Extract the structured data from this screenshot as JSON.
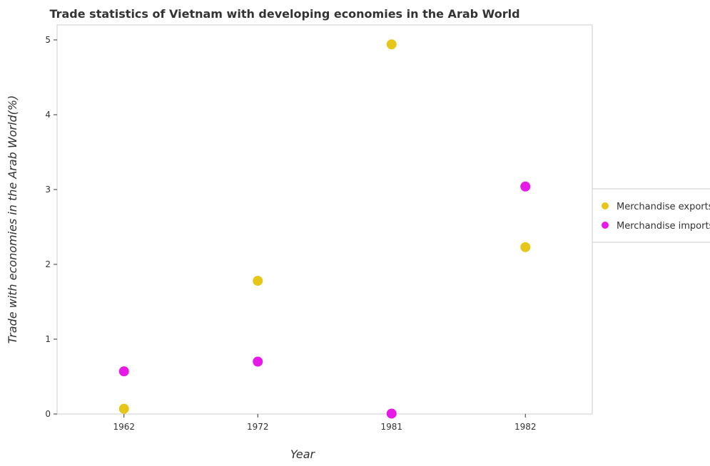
{
  "chart_data": {
    "type": "scatter",
    "title": "Trade statistics of Vietnam with developing economies in the Arab World",
    "xlabel": "Year",
    "ylabel": "Trade with economies in the Arab World(%)",
    "categories": [
      "1962",
      "1972",
      "1981",
      "1982"
    ],
    "ylim": [
      0,
      5.2
    ],
    "yticks": [
      "0",
      "1",
      "2",
      "3",
      "4",
      "5"
    ],
    "grid": false,
    "legend_position": "right",
    "series": [
      {
        "name": "Merchandise exports",
        "color": "#e6c619",
        "values": [
          0.07,
          1.78,
          4.94,
          2.23
        ]
      },
      {
        "name": "Merchandise imports",
        "color": "#e619e6",
        "values": [
          0.57,
          0.7,
          0.005,
          3.04
        ]
      }
    ]
  }
}
